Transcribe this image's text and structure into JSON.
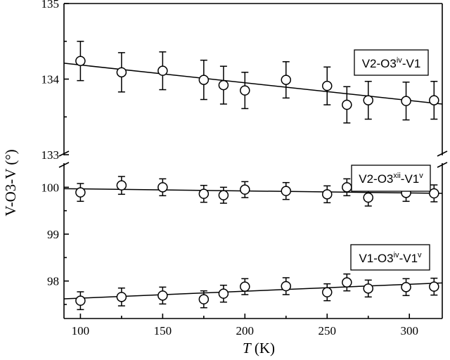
{
  "chart_data": {
    "type": "scatter",
    "xlabel": {
      "italic": "T",
      "unit": " (K)"
    },
    "ylabel": "V-O3-V (°)",
    "xlim": [
      90,
      320
    ],
    "x_ticks": [
      100,
      150,
      200,
      250,
      300
    ],
    "x_tick_labels": [
      "100",
      "150",
      "200",
      "250",
      "300"
    ],
    "y_axis_break": {
      "between": [
        100.5,
        133
      ]
    },
    "y_ticks": [
      98,
      99,
      100,
      133,
      134,
      135
    ],
    "y_tick_labels": [
      "98",
      "99",
      "100",
      "133",
      "134",
      "135"
    ],
    "y_segments": [
      {
        "range": [
          97.2,
          100.5
        ]
      },
      {
        "range": [
          133,
          135
        ]
      }
    ],
    "grid": false,
    "series": [
      {
        "name": "V2-O3iv-V1",
        "label": {
          "base": "V2-O3",
          "sup1": "iv",
          "mid": "-V1",
          "sup2": ""
        },
        "x": [
          100,
          125,
          150,
          175,
          187,
          200,
          225,
          250,
          262,
          275,
          298,
          315
        ],
        "y": [
          134.24,
          134.09,
          134.11,
          133.99,
          133.92,
          133.85,
          133.99,
          133.91,
          133.66,
          133.72,
          133.71,
          133.72
        ],
        "err": [
          0.26,
          0.26,
          0.25,
          0.26,
          0.25,
          0.24,
          0.24,
          0.25,
          0.24,
          0.25,
          0.25,
          0.25
        ],
        "fit": {
          "x": [
            90,
            320
          ],
          "y": [
            134.21,
            133.67
          ]
        }
      },
      {
        "name": "V2-O3xii-V1v",
        "label": {
          "base": "V2-O3",
          "sup1": "xii",
          "mid": "-V1",
          "sup2": "v"
        },
        "x": [
          100,
          125,
          150,
          175,
          187,
          200,
          225,
          250,
          262,
          275,
          298,
          315
        ],
        "y": [
          99.89,
          100.04,
          100.0,
          99.86,
          99.83,
          99.95,
          99.92,
          99.85,
          100.0,
          99.78,
          99.88,
          99.87
        ],
        "err": [
          0.19,
          0.19,
          0.18,
          0.18,
          0.17,
          0.17,
          0.18,
          0.18,
          0.18,
          0.18,
          0.18,
          0.18
        ],
        "fit": {
          "x": [
            90,
            320
          ],
          "y": [
            99.97,
            99.87
          ]
        }
      },
      {
        "name": "V1-O3iv-V1v",
        "label": {
          "base": "V1-O3",
          "sup1": "iv",
          "mid": "-V1",
          "sup2": "v"
        },
        "x": [
          100,
          125,
          150,
          175,
          187,
          200,
          225,
          250,
          262,
          275,
          298,
          315
        ],
        "y": [
          97.58,
          97.66,
          97.69,
          97.61,
          97.73,
          97.88,
          97.89,
          97.76,
          97.97,
          97.84,
          97.87,
          97.88
        ],
        "err": [
          0.19,
          0.19,
          0.18,
          0.18,
          0.18,
          0.17,
          0.18,
          0.18,
          0.18,
          0.18,
          0.18,
          0.18
        ],
        "fit": {
          "x": [
            90,
            320
          ],
          "y": [
            97.62,
            97.96
          ]
        }
      }
    ]
  }
}
